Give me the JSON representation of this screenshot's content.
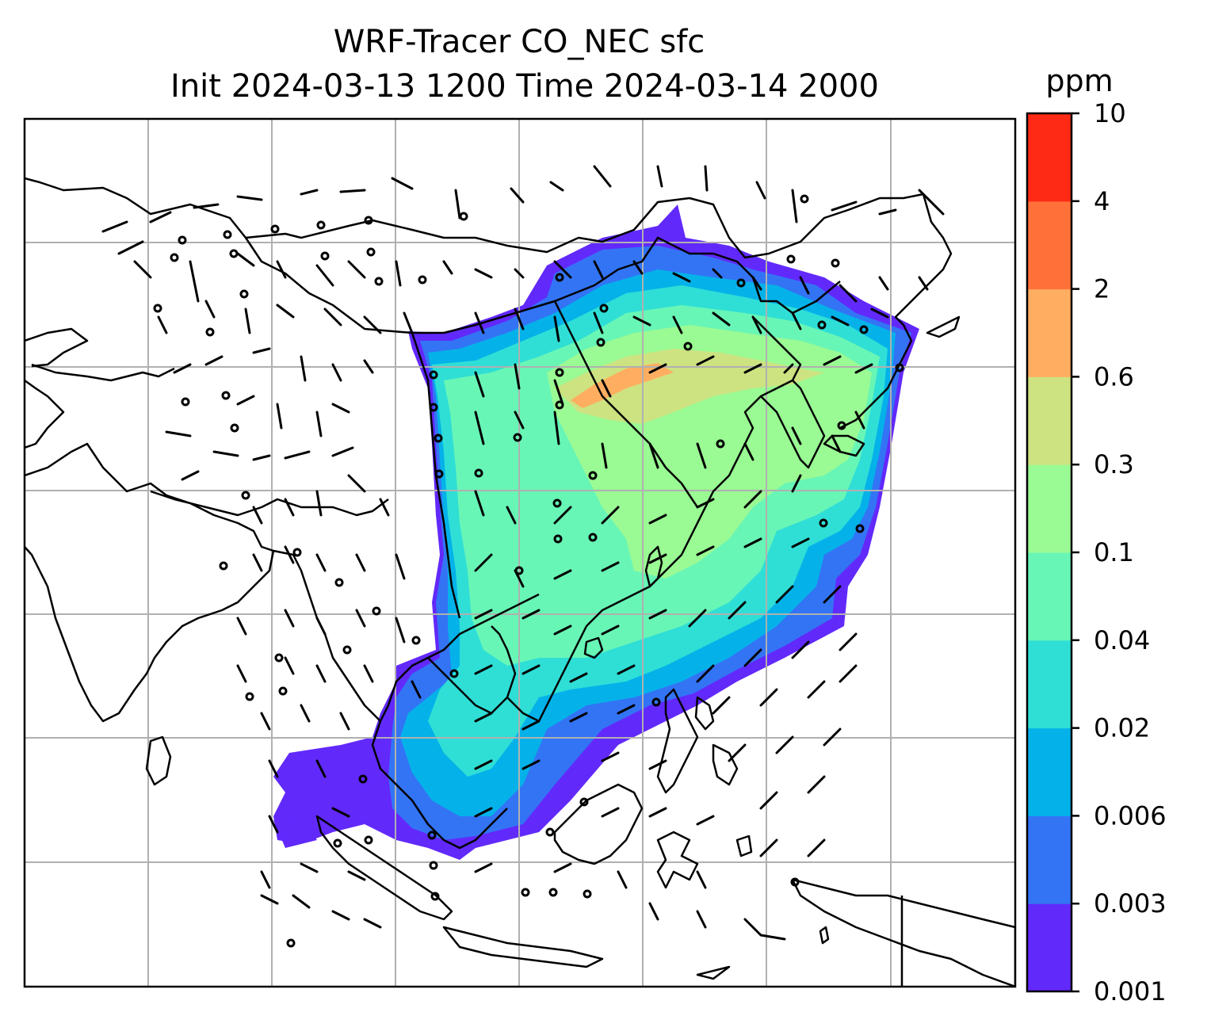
{
  "figure": {
    "title_line1": "WRF-Tracer CO_NEC sfc",
    "title_line2": "Init 2024-03-13 1200 Time 2024-03-14 2000"
  },
  "colorbar": {
    "unit": "ppm",
    "levels": [
      "0.001",
      "0.003",
      "0.006",
      "0.02",
      "0.04",
      "0.1",
      "0.3",
      "0.6",
      "2",
      "4",
      "10"
    ],
    "colors": [
      "#6229fb",
      "#3374f5",
      "#04b2e9",
      "#2fdfd6",
      "#68f6b6",
      "#9afa94",
      "#cde381",
      "#ffae61",
      "#ff7139",
      "#ff2a15"
    ]
  },
  "map": {
    "gridlines": "on",
    "coastline_color": "#000000",
    "gridline_color": "#b0b0b0",
    "wind_barbs": "on"
  }
}
